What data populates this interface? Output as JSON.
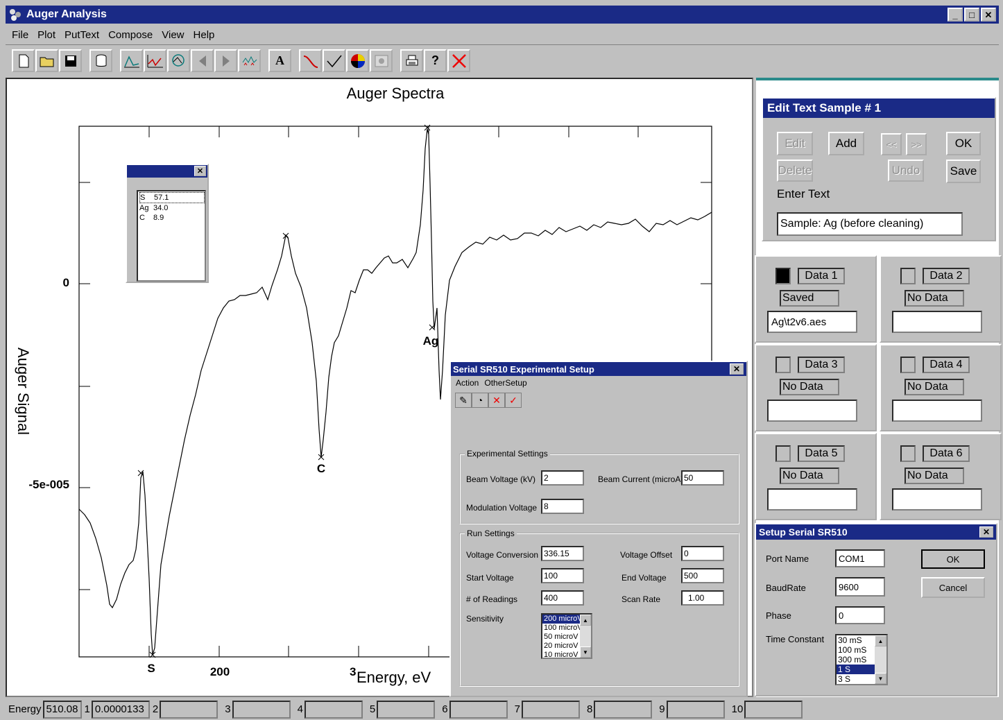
{
  "window": {
    "title": "Auger Analysis",
    "controls": [
      "_",
      "□",
      "✕"
    ]
  },
  "menu": [
    "File",
    "Plot",
    "PutText",
    "Compose",
    "View",
    "Help"
  ],
  "plot": {
    "title": "Auger Spectra",
    "ylabel": "Auger Signal",
    "xlabel": "Energy, eV",
    "y_ticks": [
      "0",
      "-5e-005"
    ],
    "x_ticks": [
      "200",
      "3"
    ],
    "peaks": [
      "S",
      "C",
      "Ag"
    ]
  },
  "legend": {
    "rows": [
      {
        "el": "S",
        "val": "57.1"
      },
      {
        "el": "Ag",
        "val": "34.0"
      },
      {
        "el": "C",
        "val": "8.9"
      }
    ]
  },
  "edit_text": {
    "title": "Edit Text Sample # 1",
    "buttons": {
      "edit": "Edit",
      "add": "Add",
      "prev": "<<",
      "next": ">>",
      "ok": "OK",
      "delete": "Delete",
      "undo": "Undo",
      "save": "Save"
    },
    "prompt": "Enter Text",
    "value": "Sample: Ag (before cleaning)"
  },
  "data_slots": [
    {
      "name": "Data 1",
      "status": "Saved",
      "file": "Ag\\t2v6.aes"
    },
    {
      "name": "Data 2",
      "status": "No Data",
      "file": ""
    },
    {
      "name": "Data 3",
      "status": "No Data",
      "file": ""
    },
    {
      "name": "Data 4",
      "status": "No Data",
      "file": ""
    },
    {
      "name": "Data 5",
      "status": "No Data",
      "file": ""
    },
    {
      "name": "Data 6",
      "status": "No Data",
      "file": ""
    }
  ],
  "setup_serial": {
    "title": "Setup Serial SR510",
    "port_label": "Port Name",
    "port": "COM1",
    "baud_label": "BaudRate",
    "baud": "9600",
    "phase_label": "Phase",
    "phase": "0",
    "tc_label": "Time Constant",
    "tc_options": [
      "30 mS",
      "100 mS",
      "300 mS",
      "1 S",
      "3 S"
    ],
    "tc_selected": "1 S",
    "ok": "OK",
    "cancel": "Cancel"
  },
  "experimental_setup": {
    "title": "Serial SR510 Experimental Setup",
    "menu": [
      "Action",
      "OtherSetup"
    ],
    "exp_group": "Experimental Settings",
    "beam_voltage_label": "Beam Voltage (kV)",
    "beam_voltage": "2",
    "beam_current_label": "Beam Current (microA)",
    "beam_current": "50",
    "mod_voltage_label": "Modulation Voltage",
    "mod_voltage": "8",
    "run_group": "Run Settings",
    "voltage_conversion_label": "Voltage Conversion",
    "voltage_conversion": "336.15",
    "voltage_offset_label": "Voltage Offset",
    "voltage_offset": "0",
    "start_voltage_label": "Start Voltage",
    "start_voltage": "100",
    "end_voltage_label": "End Voltage",
    "end_voltage": "500",
    "readings_label": "# of Readings",
    "readings": "400",
    "scan_rate_label": "Scan Rate",
    "scan_rate": "1.00",
    "sensitivity_label": "Sensitivity",
    "sensitivity_options": [
      "200 microV",
      "100 microV",
      "50 microV",
      "20 microV",
      "10 microV"
    ],
    "sensitivity_selected": "200 microV"
  },
  "status": {
    "energy_label": "Energy",
    "energy": "510.08",
    "channels": [
      {
        "n": "1",
        "v": "0.0000133"
      },
      {
        "n": "2",
        "v": ""
      },
      {
        "n": "3",
        "v": ""
      },
      {
        "n": "4",
        "v": ""
      },
      {
        "n": "5",
        "v": ""
      },
      {
        "n": "6",
        "v": ""
      },
      {
        "n": "7",
        "v": ""
      },
      {
        "n": "8",
        "v": ""
      },
      {
        "n": "9",
        "v": ""
      },
      {
        "n": "10",
        "v": ""
      }
    ]
  }
}
